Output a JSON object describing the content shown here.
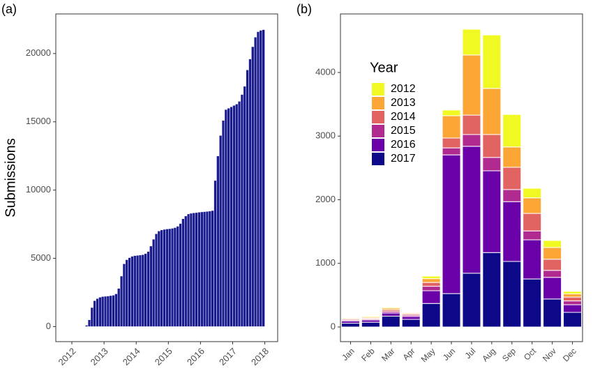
{
  "chart_data": [
    {
      "type": "bar",
      "panel_label": "(a)",
      "ylabel": "Submissions",
      "color": "#1a1a8f",
      "xlim": [
        2011.5,
        2018.4
      ],
      "xticks": [
        2012,
        2013,
        2014,
        2015,
        2016,
        2017,
        2018
      ],
      "ylim": [
        -1100,
        22900
      ],
      "yticks": [
        0,
        5000,
        10000,
        15000,
        20000
      ],
      "x": [
        2012.375,
        2012.458,
        2012.542,
        2012.625,
        2012.708,
        2012.792,
        2012.875,
        2012.958,
        2013.042,
        2013.125,
        2013.208,
        2013.292,
        2013.375,
        2013.458,
        2013.542,
        2013.625,
        2013.708,
        2013.792,
        2013.875,
        2013.958,
        2014.042,
        2014.125,
        2014.208,
        2014.292,
        2014.375,
        2014.458,
        2014.542,
        2014.625,
        2014.708,
        2014.792,
        2014.875,
        2014.958,
        2015.042,
        2015.125,
        2015.208,
        2015.292,
        2015.375,
        2015.458,
        2015.542,
        2015.625,
        2015.708,
        2015.792,
        2015.875,
        2015.958,
        2016.042,
        2016.125,
        2016.208,
        2016.292,
        2016.375,
        2016.458,
        2016.542,
        2016.625,
        2016.708,
        2016.792,
        2016.875,
        2016.958,
        2017.042,
        2017.125,
        2017.208,
        2017.292,
        2017.375,
        2017.458,
        2017.542,
        2017.625,
        2017.708,
        2017.792,
        2017.875,
        2017.958
      ],
      "values": [
        20,
        100,
        500,
        1400,
        1900,
        2050,
        2150,
        2200,
        2220,
        2240,
        2270,
        2300,
        2400,
        2800,
        3700,
        4600,
        4900,
        5050,
        5150,
        5200,
        5220,
        5240,
        5270,
        5350,
        5500,
        5900,
        6400,
        6800,
        7000,
        7080,
        7120,
        7150,
        7170,
        7200,
        7250,
        7350,
        7550,
        7900,
        8100,
        8250,
        8300,
        8330,
        8350,
        8380,
        8400,
        8420,
        8440,
        8460,
        8500,
        10700,
        12500,
        14000,
        15100,
        15900,
        16000,
        16100,
        16200,
        16300,
        16500,
        17000,
        17600,
        18800,
        19600,
        20500,
        21200,
        21600,
        21700,
        21750
      ]
    },
    {
      "type": "stacked",
      "panel_label": "(b)",
      "legend_title": "Year",
      "categories": [
        "Jan",
        "Feb",
        "Mar",
        "Apr",
        "May",
        "Jun",
        "Jul",
        "Aug",
        "Sep",
        "Oct",
        "Nov",
        "Dec"
      ],
      "ylim": [
        -230,
        4920
      ],
      "yticks": [
        0,
        1000,
        2000,
        3000,
        4000
      ],
      "series": [
        {
          "name": "2012",
          "color": "#f0f921",
          "values": [
            10,
            15,
            15,
            10,
            40,
            90,
            405,
            840,
            510,
            150,
            110,
            40
          ]
        },
        {
          "name": "2013",
          "color": "#fca636",
          "values": [
            15,
            15,
            25,
            15,
            60,
            350,
            945,
            725,
            320,
            245,
            185,
            50
          ]
        },
        {
          "name": "2014",
          "color": "#e16462",
          "values": [
            15,
            15,
            25,
            20,
            60,
            155,
            305,
            360,
            350,
            275,
            175,
            60
          ]
        },
        {
          "name": "2015",
          "color": "#b12a90",
          "values": [
            15,
            15,
            25,
            20,
            70,
            110,
            185,
            210,
            190,
            140,
            110,
            60
          ]
        },
        {
          "name": "2016",
          "color": "#6a00a8",
          "values": [
            35,
            35,
            50,
            45,
            200,
            2180,
            1995,
            1285,
            940,
            615,
            340,
            120
          ]
        },
        {
          "name": "2017",
          "color": "#0d0887",
          "values": [
            60,
            75,
            170,
            120,
            370,
            525,
            845,
            1170,
            1030,
            755,
            440,
            230
          ]
        }
      ]
    }
  ]
}
